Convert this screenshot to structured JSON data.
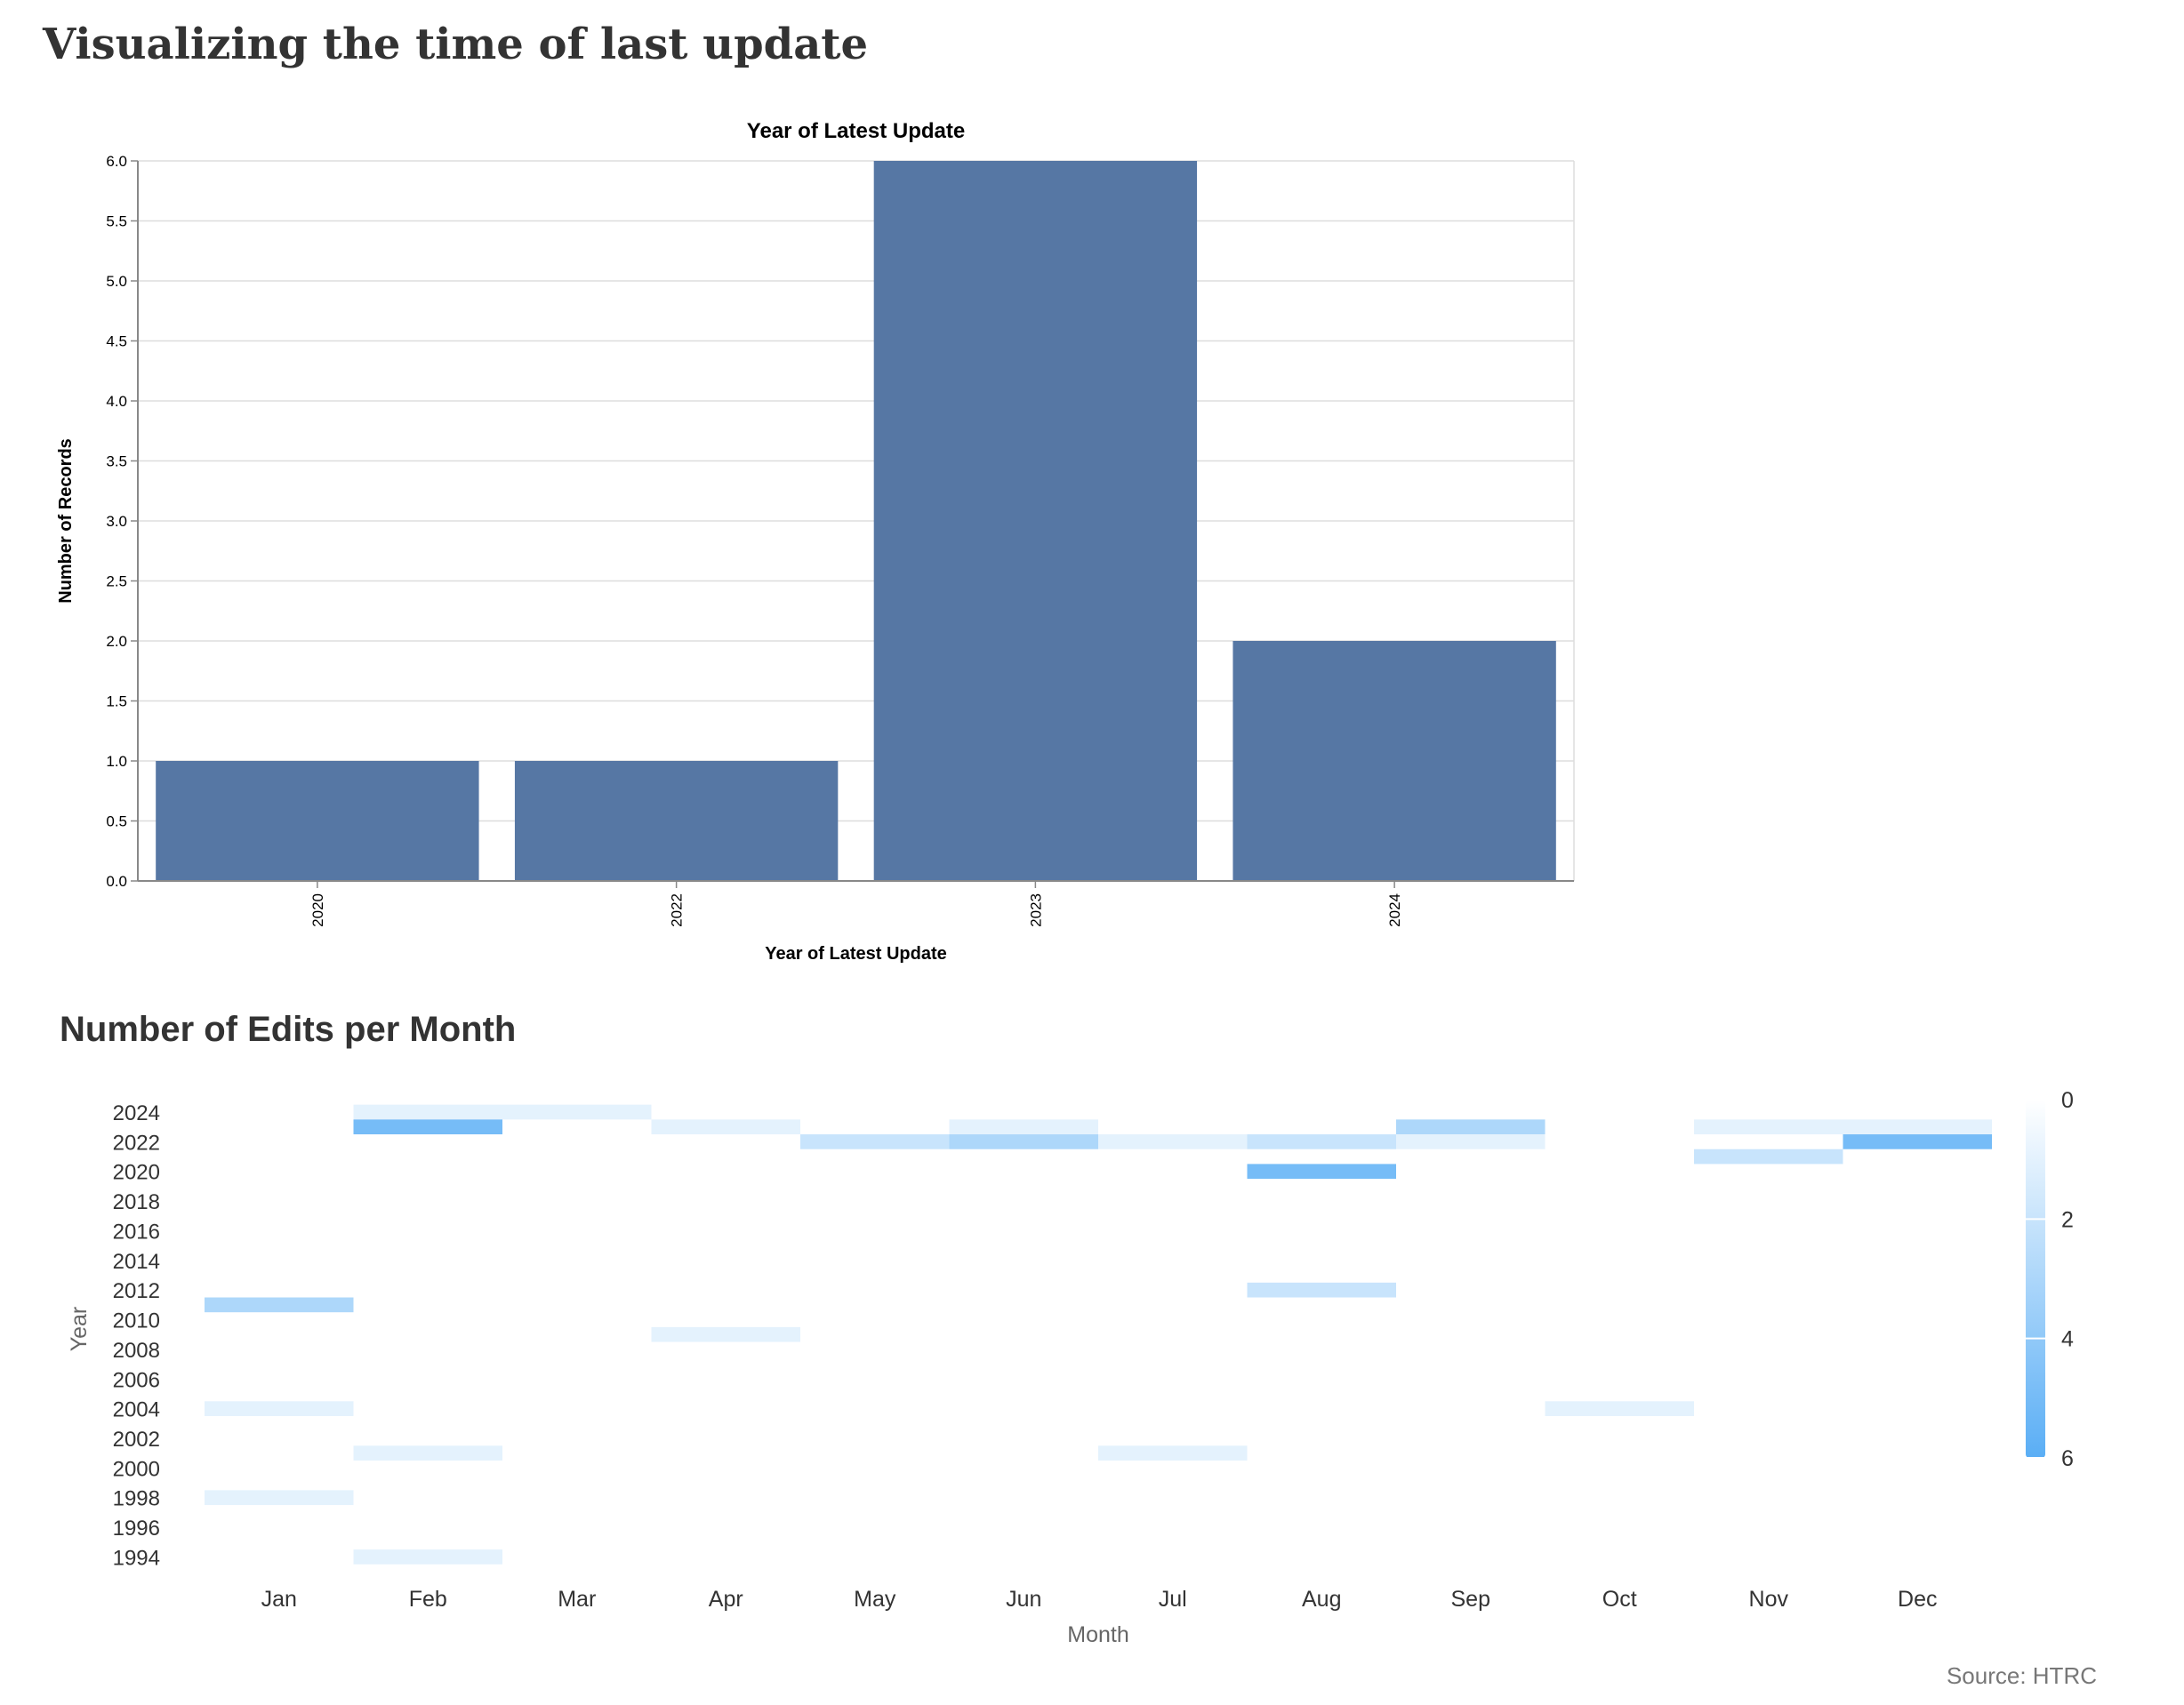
{
  "page": {
    "title": "Visualizing the time of last update",
    "source": "Source: HTRC"
  },
  "chart_data": [
    {
      "type": "bar",
      "title": "Year of Latest Update",
      "xlabel": "Year of Latest Update",
      "ylabel": "Number of Records",
      "categories": [
        "2020",
        "2022",
        "2023",
        "2024"
      ],
      "values": [
        1,
        1,
        6,
        2
      ],
      "ylim": [
        0,
        6
      ],
      "yticks": [
        "0.0",
        "0.5",
        "1.0",
        "1.5",
        "2.0",
        "2.5",
        "3.0",
        "3.5",
        "4.0",
        "4.5",
        "5.0",
        "5.5",
        "6.0"
      ],
      "grid": true,
      "colors": {
        "bar": "#5677a4",
        "grid": "#dddddd",
        "axis": "#888888"
      }
    },
    {
      "type": "heatmap",
      "title": "Number of Edits per Month",
      "xlabel": "Month",
      "ylabel": "Year",
      "months": [
        "Jan",
        "Feb",
        "Mar",
        "Apr",
        "May",
        "Jun",
        "Jul",
        "Aug",
        "Sep",
        "Oct",
        "Nov",
        "Dec"
      ],
      "ylim": [
        1993,
        2025
      ],
      "yticks": [
        "2024",
        "2022",
        "2020",
        "2018",
        "2016",
        "2014",
        "2012",
        "2010",
        "2008",
        "2006",
        "2004",
        "2002",
        "2000",
        "1998",
        "1996",
        "1994"
      ],
      "legend": {
        "min": 0,
        "max": 6,
        "ticks": [
          "0",
          "2",
          "4",
          "6"
        ],
        "placement": "right"
      },
      "colors": {
        "low": "#ffffff",
        "high": "#5aaef5"
      },
      "cells": [
        {
          "month": "Feb",
          "year": 2024,
          "value": 1
        },
        {
          "month": "Mar",
          "year": 2024,
          "value": 1
        },
        {
          "month": "Feb",
          "year": 2023,
          "value": 5
        },
        {
          "month": "Apr",
          "year": 2023,
          "value": 1
        },
        {
          "month": "Jun",
          "year": 2023,
          "value": 1
        },
        {
          "month": "Sep",
          "year": 2023,
          "value": 3
        },
        {
          "month": "Nov",
          "year": 2023,
          "value": 1
        },
        {
          "month": "Dec",
          "year": 2023,
          "value": 1
        },
        {
          "month": "May",
          "year": 2022,
          "value": 2
        },
        {
          "month": "Jun",
          "year": 2022,
          "value": 3
        },
        {
          "month": "Jul",
          "year": 2022,
          "value": 1
        },
        {
          "month": "Aug",
          "year": 2022,
          "value": 2
        },
        {
          "month": "Sep",
          "year": 2022,
          "value": 1
        },
        {
          "month": "Dec",
          "year": 2022,
          "value": 5
        },
        {
          "month": "Nov",
          "year": 2021,
          "value": 2
        },
        {
          "month": "Aug",
          "year": 2020,
          "value": 5
        },
        {
          "month": "Aug",
          "year": 2012,
          "value": 2
        },
        {
          "month": "Jan",
          "year": 2011,
          "value": 3
        },
        {
          "month": "Apr",
          "year": 2009,
          "value": 1
        },
        {
          "month": "Jan",
          "year": 2004,
          "value": 1
        },
        {
          "month": "Oct",
          "year": 2004,
          "value": 1
        },
        {
          "month": "Feb",
          "year": 2001,
          "value": 1
        },
        {
          "month": "Jul",
          "year": 2001,
          "value": 1
        },
        {
          "month": "Jan",
          "year": 1998,
          "value": 1
        },
        {
          "month": "Feb",
          "year": 1994,
          "value": 1
        }
      ]
    }
  ]
}
